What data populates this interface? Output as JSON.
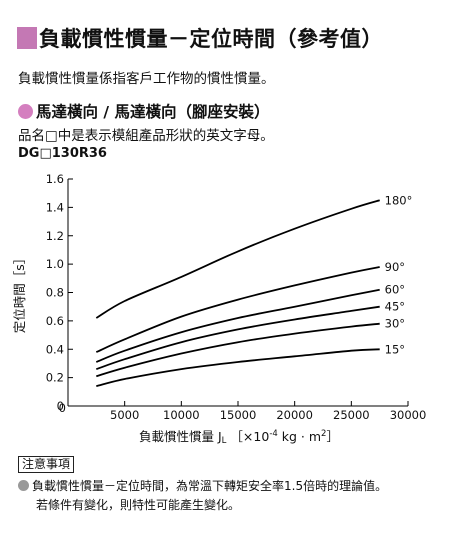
{
  "header": {
    "title": "負載慣性慣量－定位時間（參考值）",
    "description": "負載慣性慣量係指客戶工作物的慣性慣量。"
  },
  "section": {
    "title": "馬達橫向 / 馬達橫向（腳座安裝）",
    "note": "品名□中是表示模組產品形狀的英文字母。",
    "model": "DG□130R36"
  },
  "chart_data": {
    "type": "line",
    "xlabel": "負載慣性慣量 J",
    "xlabel_sub": "L",
    "xlabel_unit_prefix": "［×10",
    "xlabel_unit_exp": "-4",
    "xlabel_unit_suffix": " kg · m",
    "xlabel_unit_exp2": "2",
    "xlabel_unit_close": "］",
    "ylabel": "定位時間［s］",
    "xlim": [
      0,
      30000
    ],
    "ylim": [
      0,
      1.6
    ],
    "x_ticks": [
      0,
      5000,
      10000,
      15000,
      20000,
      25000,
      30000
    ],
    "x_tick_labels": [
      "0",
      "5000",
      "10000",
      "15000",
      "20000",
      "25000",
      "30000"
    ],
    "y_ticks": [
      0,
      0.2,
      0.4,
      0.6,
      0.8,
      1.0,
      1.2,
      1.4,
      1.6
    ],
    "y_tick_labels": [
      "0",
      "0.2",
      "0.4",
      "0.6",
      "0.8",
      "1.0",
      "1.2",
      "1.4",
      "1.6"
    ],
    "grid": false,
    "series": [
      {
        "name": "180°",
        "x": [
          2500,
          5000,
          10000,
          15000,
          20000,
          25000,
          27500
        ],
        "y": [
          0.62,
          0.74,
          0.91,
          1.09,
          1.25,
          1.39,
          1.45
        ]
      },
      {
        "name": "90°",
        "x": [
          2500,
          5000,
          10000,
          15000,
          20000,
          25000,
          27500
        ],
        "y": [
          0.38,
          0.47,
          0.63,
          0.75,
          0.85,
          0.94,
          0.98
        ]
      },
      {
        "name": "60°",
        "x": [
          2500,
          5000,
          10000,
          15000,
          20000,
          25000,
          27500
        ],
        "y": [
          0.31,
          0.39,
          0.52,
          0.62,
          0.7,
          0.78,
          0.82
        ]
      },
      {
        "name": "45°",
        "x": [
          2500,
          5000,
          10000,
          15000,
          20000,
          25000,
          27500
        ],
        "y": [
          0.26,
          0.33,
          0.45,
          0.54,
          0.61,
          0.67,
          0.7
        ]
      },
      {
        "name": "30°",
        "x": [
          2500,
          5000,
          10000,
          15000,
          20000,
          25000,
          27500
        ],
        "y": [
          0.21,
          0.27,
          0.37,
          0.45,
          0.51,
          0.56,
          0.58
        ]
      },
      {
        "name": "15°",
        "x": [
          2500,
          5000,
          10000,
          15000,
          20000,
          25000,
          27500
        ],
        "y": [
          0.14,
          0.19,
          0.26,
          0.31,
          0.35,
          0.39,
          0.4
        ]
      }
    ]
  },
  "caution": {
    "label": "注意事項",
    "line1": "負載慣性慣量－定位時間，為常溫下轉矩安全率1.5倍時的理論值。",
    "line2": "若條件有變化，則特性可能產生變化。"
  },
  "colors": {
    "title_square": "#c478b4",
    "section_dot": "#d47fbf",
    "line": "#000000",
    "axis": "#000000"
  }
}
